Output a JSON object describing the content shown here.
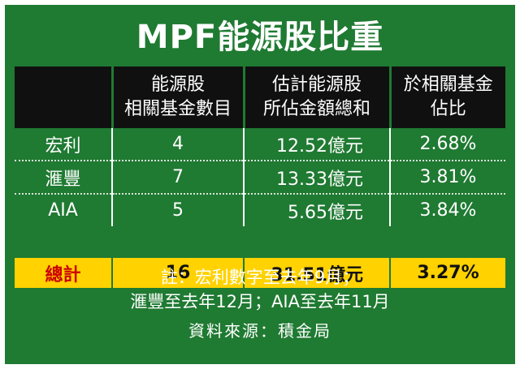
{
  "title": "MPF能源股比重",
  "chart_data": {
    "type": "table",
    "columns": [
      "",
      "能源股\n相關基金數目",
      "估計能源股\n所佔金額總和",
      "於相關基金\n佔比"
    ],
    "rows": [
      {
        "name": "宏利",
        "count": "4",
        "amount": "12.52億元",
        "ratio": "2.68%"
      },
      {
        "name": "滙豐",
        "count": "7",
        "amount": "13.33億元",
        "ratio": "3.81%"
      },
      {
        "name": "AIA",
        "count": "5",
        "amount": "5.65億元",
        "ratio": "3.84%"
      }
    ],
    "total": {
      "name": "總計",
      "count": "16",
      "amount": "31.51億元",
      "ratio": "3.27%"
    }
  },
  "notes": {
    "line1": "註：宏利數字至去年9月；",
    "line2": "滙豐至去年12月；AIA至去年11月"
  },
  "source": "資料來源：積金局",
  "colors": {
    "background": "#1f7a32",
    "header": "#101010",
    "total_row": "#ffd200",
    "total_label": "#cc0000"
  }
}
